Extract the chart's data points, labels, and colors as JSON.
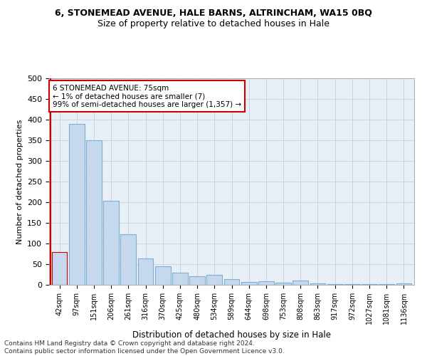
{
  "title1": "6, STONEMEAD AVENUE, HALE BARNS, ALTRINCHAM, WA15 0BQ",
  "title2": "Size of property relative to detached houses in Hale",
  "xlabel": "Distribution of detached houses by size in Hale",
  "ylabel": "Number of detached properties",
  "categories": [
    "42sqm",
    "97sqm",
    "151sqm",
    "206sqm",
    "261sqm",
    "316sqm",
    "370sqm",
    "425sqm",
    "480sqm",
    "534sqm",
    "589sqm",
    "644sqm",
    "698sqm",
    "753sqm",
    "808sqm",
    "863sqm",
    "917sqm",
    "972sqm",
    "1027sqm",
    "1081sqm",
    "1136sqm"
  ],
  "values": [
    80,
    390,
    350,
    204,
    122,
    63,
    45,
    30,
    21,
    24,
    14,
    7,
    9,
    6,
    10,
    4,
    2,
    2,
    1,
    1,
    3
  ],
  "bar_color": "#c5d8ed",
  "bar_edge_color": "#7bafd4",
  "highlight_bar_index": 0,
  "highlight_edge_color": "#cc0000",
  "annotation_box_text": "6 STONEMEAD AVENUE: 75sqm\n← 1% of detached houses are smaller (7)\n99% of semi-detached houses are larger (1,357) →",
  "annotation_box_color": "#ffffff",
  "annotation_box_edge_color": "#cc0000",
  "vline_color": "#cc0000",
  "ylim": [
    0,
    500
  ],
  "yticks": [
    0,
    50,
    100,
    150,
    200,
    250,
    300,
    350,
    400,
    450,
    500
  ],
  "footer": "Contains HM Land Registry data © Crown copyright and database right 2024.\nContains public sector information licensed under the Open Government Licence v3.0.",
  "bg_color": "#ffffff",
  "grid_color": "#c8d0d8",
  "title1_fontsize": 9,
  "title2_fontsize": 9,
  "axis_bg_color": "#e8eff6"
}
